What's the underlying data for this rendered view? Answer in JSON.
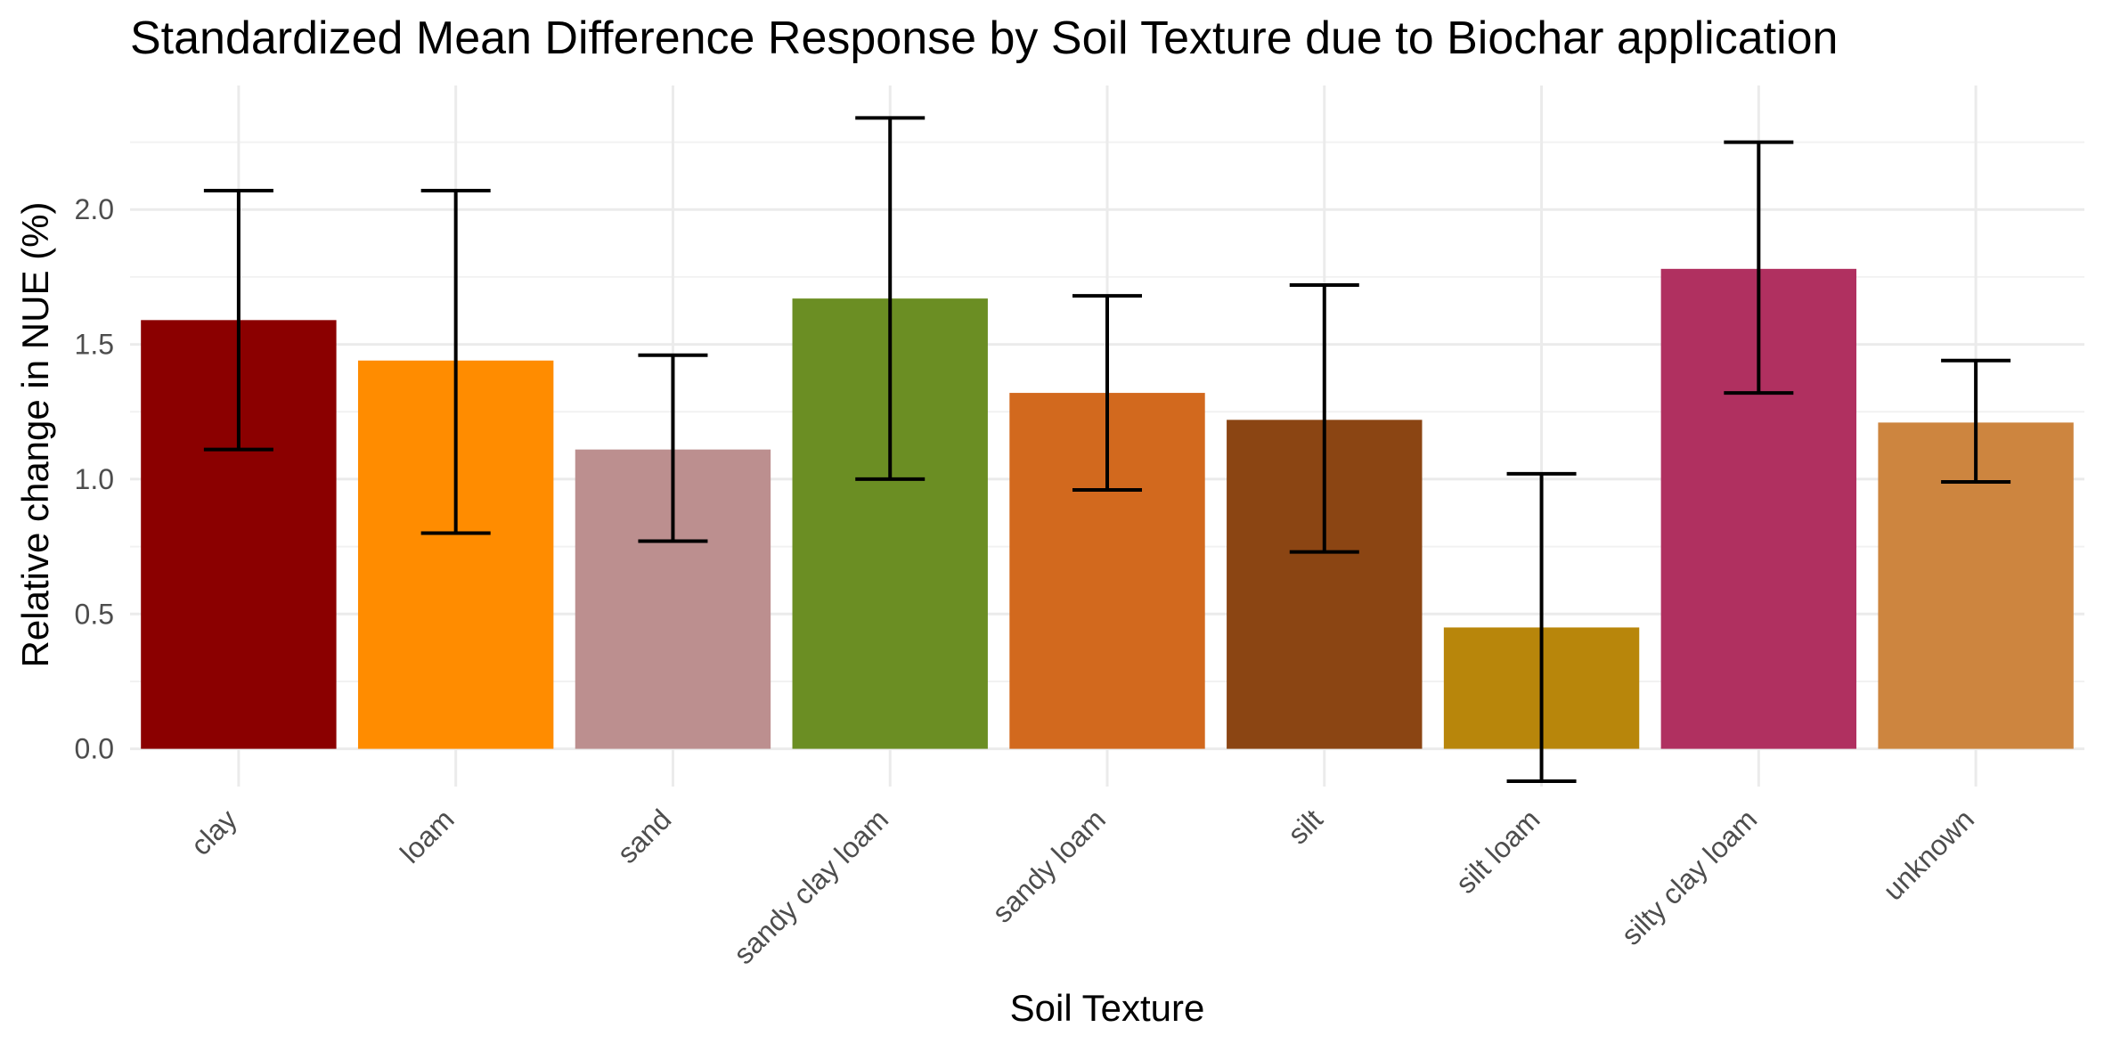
{
  "chart_data": {
    "type": "bar",
    "title": "Standardized Mean Difference Response by Soil Texture due to Biochar application",
    "xlabel": "Soil Texture",
    "ylabel": "Relative change in NUE (%)",
    "categories": [
      "clay",
      "loam",
      "sand",
      "sandy clay loam",
      "sandy loam",
      "silt",
      "silt loam",
      "silty clay loam",
      "unknown"
    ],
    "values": [
      1.59,
      1.44,
      1.11,
      1.67,
      1.32,
      1.22,
      0.45,
      1.78,
      1.21
    ],
    "error_low": [
      1.11,
      0.8,
      0.77,
      1.0,
      0.96,
      0.73,
      -0.12,
      1.32,
      0.99
    ],
    "error_high": [
      2.07,
      2.07,
      1.46,
      2.34,
      1.68,
      1.72,
      1.02,
      2.25,
      1.44
    ],
    "colors": [
      "#8b0000",
      "#ff8c00",
      "#bc8f8f",
      "#6b8e23",
      "#d2691e",
      "#8b4513",
      "#b8860b",
      "#b03060",
      "#cd853f"
    ],
    "y_ticks": [
      "0.0",
      "0.5",
      "1.0",
      "1.5",
      "2.0"
    ],
    "ylim": [
      -0.14,
      2.46
    ],
    "grid": true,
    "legend": "none"
  }
}
